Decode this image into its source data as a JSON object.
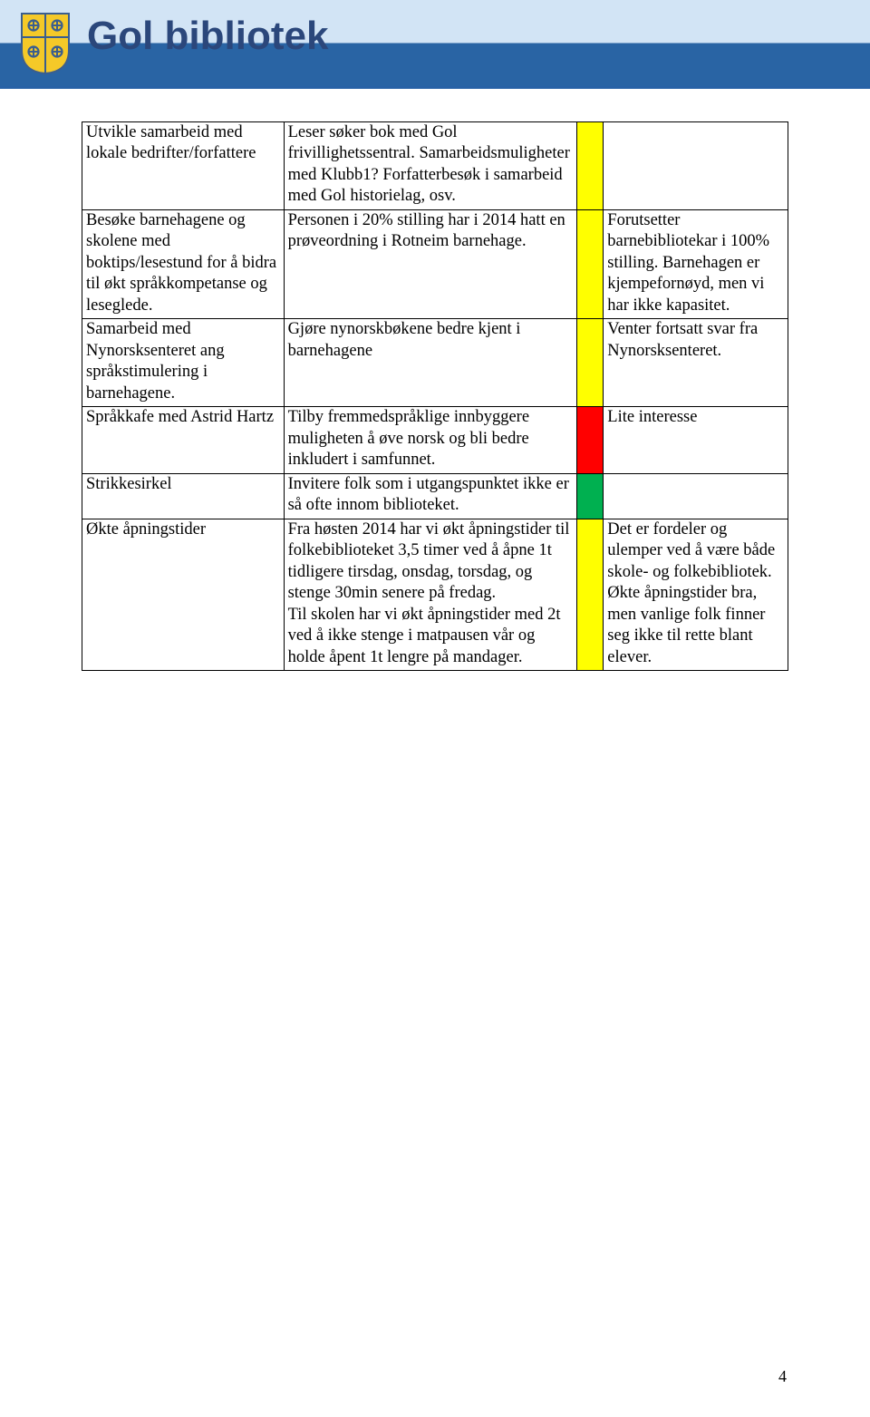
{
  "header": {
    "title": "Gol bibliotek"
  },
  "table": {
    "columns": {
      "a_width": 212,
      "b_width": 308,
      "c_width": 28,
      "d_width": 194
    },
    "status_colors": {
      "yellow": "#ffff00",
      "red": "#ff0000",
      "green": "#00b050"
    },
    "rows": [
      {
        "a": "Utvikle samarbeid med lokale bedrifter/forfattere",
        "b": "Leser søker bok med Gol frivillighetssentral. Samarbeidsmuligheter med Klubb1? Forfatterbesøk i samarbeid med Gol historielag, osv.",
        "status": "yellow",
        "d": ""
      },
      {
        "a": "Besøke barnehagene og skolene med boktips/lesestund for å bidra til økt språkkompetanse og leseglede.",
        "b": "Personen i 20% stilling har i 2014 hatt en prøveordning i Rotneim barnehage.",
        "status": "yellow",
        "d": "Forutsetter barnebibliotekar i 100% stilling. Barnehagen er kjempefornøyd, men vi har ikke kapasitet."
      },
      {
        "a": "Samarbeid med Nynorsksenteret ang språkstimulering i barnehagene.",
        "b": "Gjøre nynorskbøkene bedre kjent i barnehagene",
        "status": "yellow",
        "d": "Venter fortsatt svar fra Nynorsksenteret."
      },
      {
        "a": "Språkkafe med Astrid Hartz",
        "b": "Tilby fremmedspråklige innbyggere muligheten å øve norsk og bli bedre inkludert i samfunnet.",
        "status": "red",
        "d": "Lite interesse"
      },
      {
        "a": "Strikkesirkel",
        "b": "Invitere folk som i utgangspunktet ikke er så ofte innom biblioteket.",
        "status": "green",
        "d": ""
      },
      {
        "a": "Økte åpningstider",
        "b": "Fra høsten 2014 har vi økt åpningstider til folkebiblioteket 3,5 timer ved å åpne 1t tidligere tirsdag, onsdag, torsdag, og stenge 30min senere på fredag.\nTil skolen har vi økt åpningstider med 2t ved å ikke stenge i matpausen vår og holde åpent 1t lengre på mandager.",
        "status": "yellow",
        "d": "Det er fordeler og ulemper ved å være både skole- og folkebibliotek. Økte åpningstider bra, men vanlige folk finner seg ikke til rette blant elever."
      }
    ]
  },
  "page_number": "4"
}
